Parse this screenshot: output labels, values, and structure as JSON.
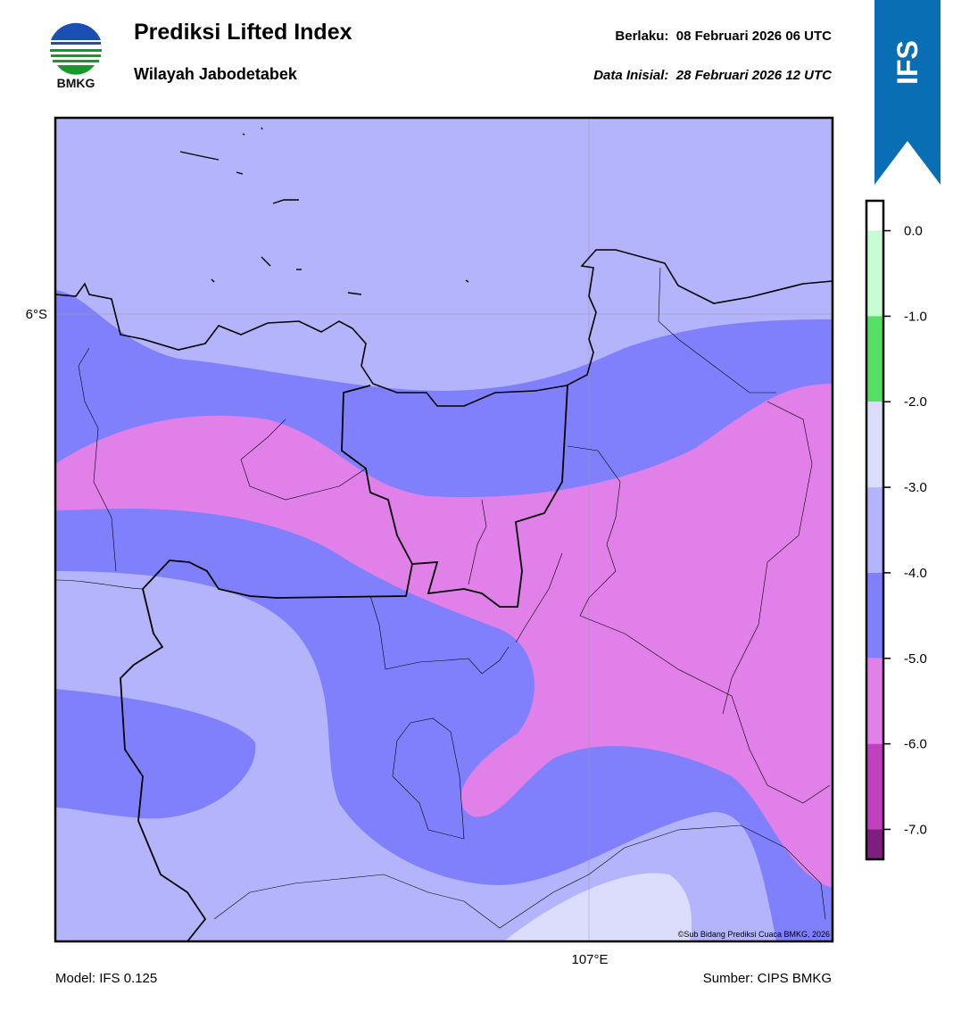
{
  "header": {
    "logo_text": "BMKG",
    "title": "Prediksi Lifted Index",
    "subtitle": "Wilayah Jabodetabek",
    "valid": "Berlaku:  08 Februari 2026 06 UTC",
    "init": "Data Inisial:  28 Februari 2026 12 UTC"
  },
  "badge": "IFS",
  "map": {
    "lat_label": "6°S",
    "lon_label": "107°E",
    "credit": "©Sub Bidang Prediksi Cuaca BMKG, 2026"
  },
  "colorbar": {
    "lim": [
      -7.35,
      0.35
    ],
    "levels": [
      0.35,
      0,
      -1,
      -2,
      -3,
      -4,
      -5,
      -6,
      -7,
      -7.35
    ],
    "colors": [
      "#ffffff",
      "#c8fcd2",
      "#55e065",
      "#dcdcfc",
      "#b4b4fc",
      "#8080fc",
      "#e080e8",
      "#c040c0",
      "#7e1f80"
    ],
    "ticks": [
      {
        "value": 0,
        "label": "0.0"
      },
      {
        "value": -1,
        "label": "-1.0"
      },
      {
        "value": -2,
        "label": "-2.0"
      },
      {
        "value": -3,
        "label": "-3.0"
      },
      {
        "value": -4,
        "label": "-4.0"
      },
      {
        "value": -5,
        "label": "-5.0"
      },
      {
        "value": -6,
        "label": "-6.0"
      },
      {
        "value": -7,
        "label": "-7.0"
      }
    ]
  },
  "footer": {
    "model": "Model: IFS 0.125",
    "source": "Sumber: CIPS BMKG"
  }
}
